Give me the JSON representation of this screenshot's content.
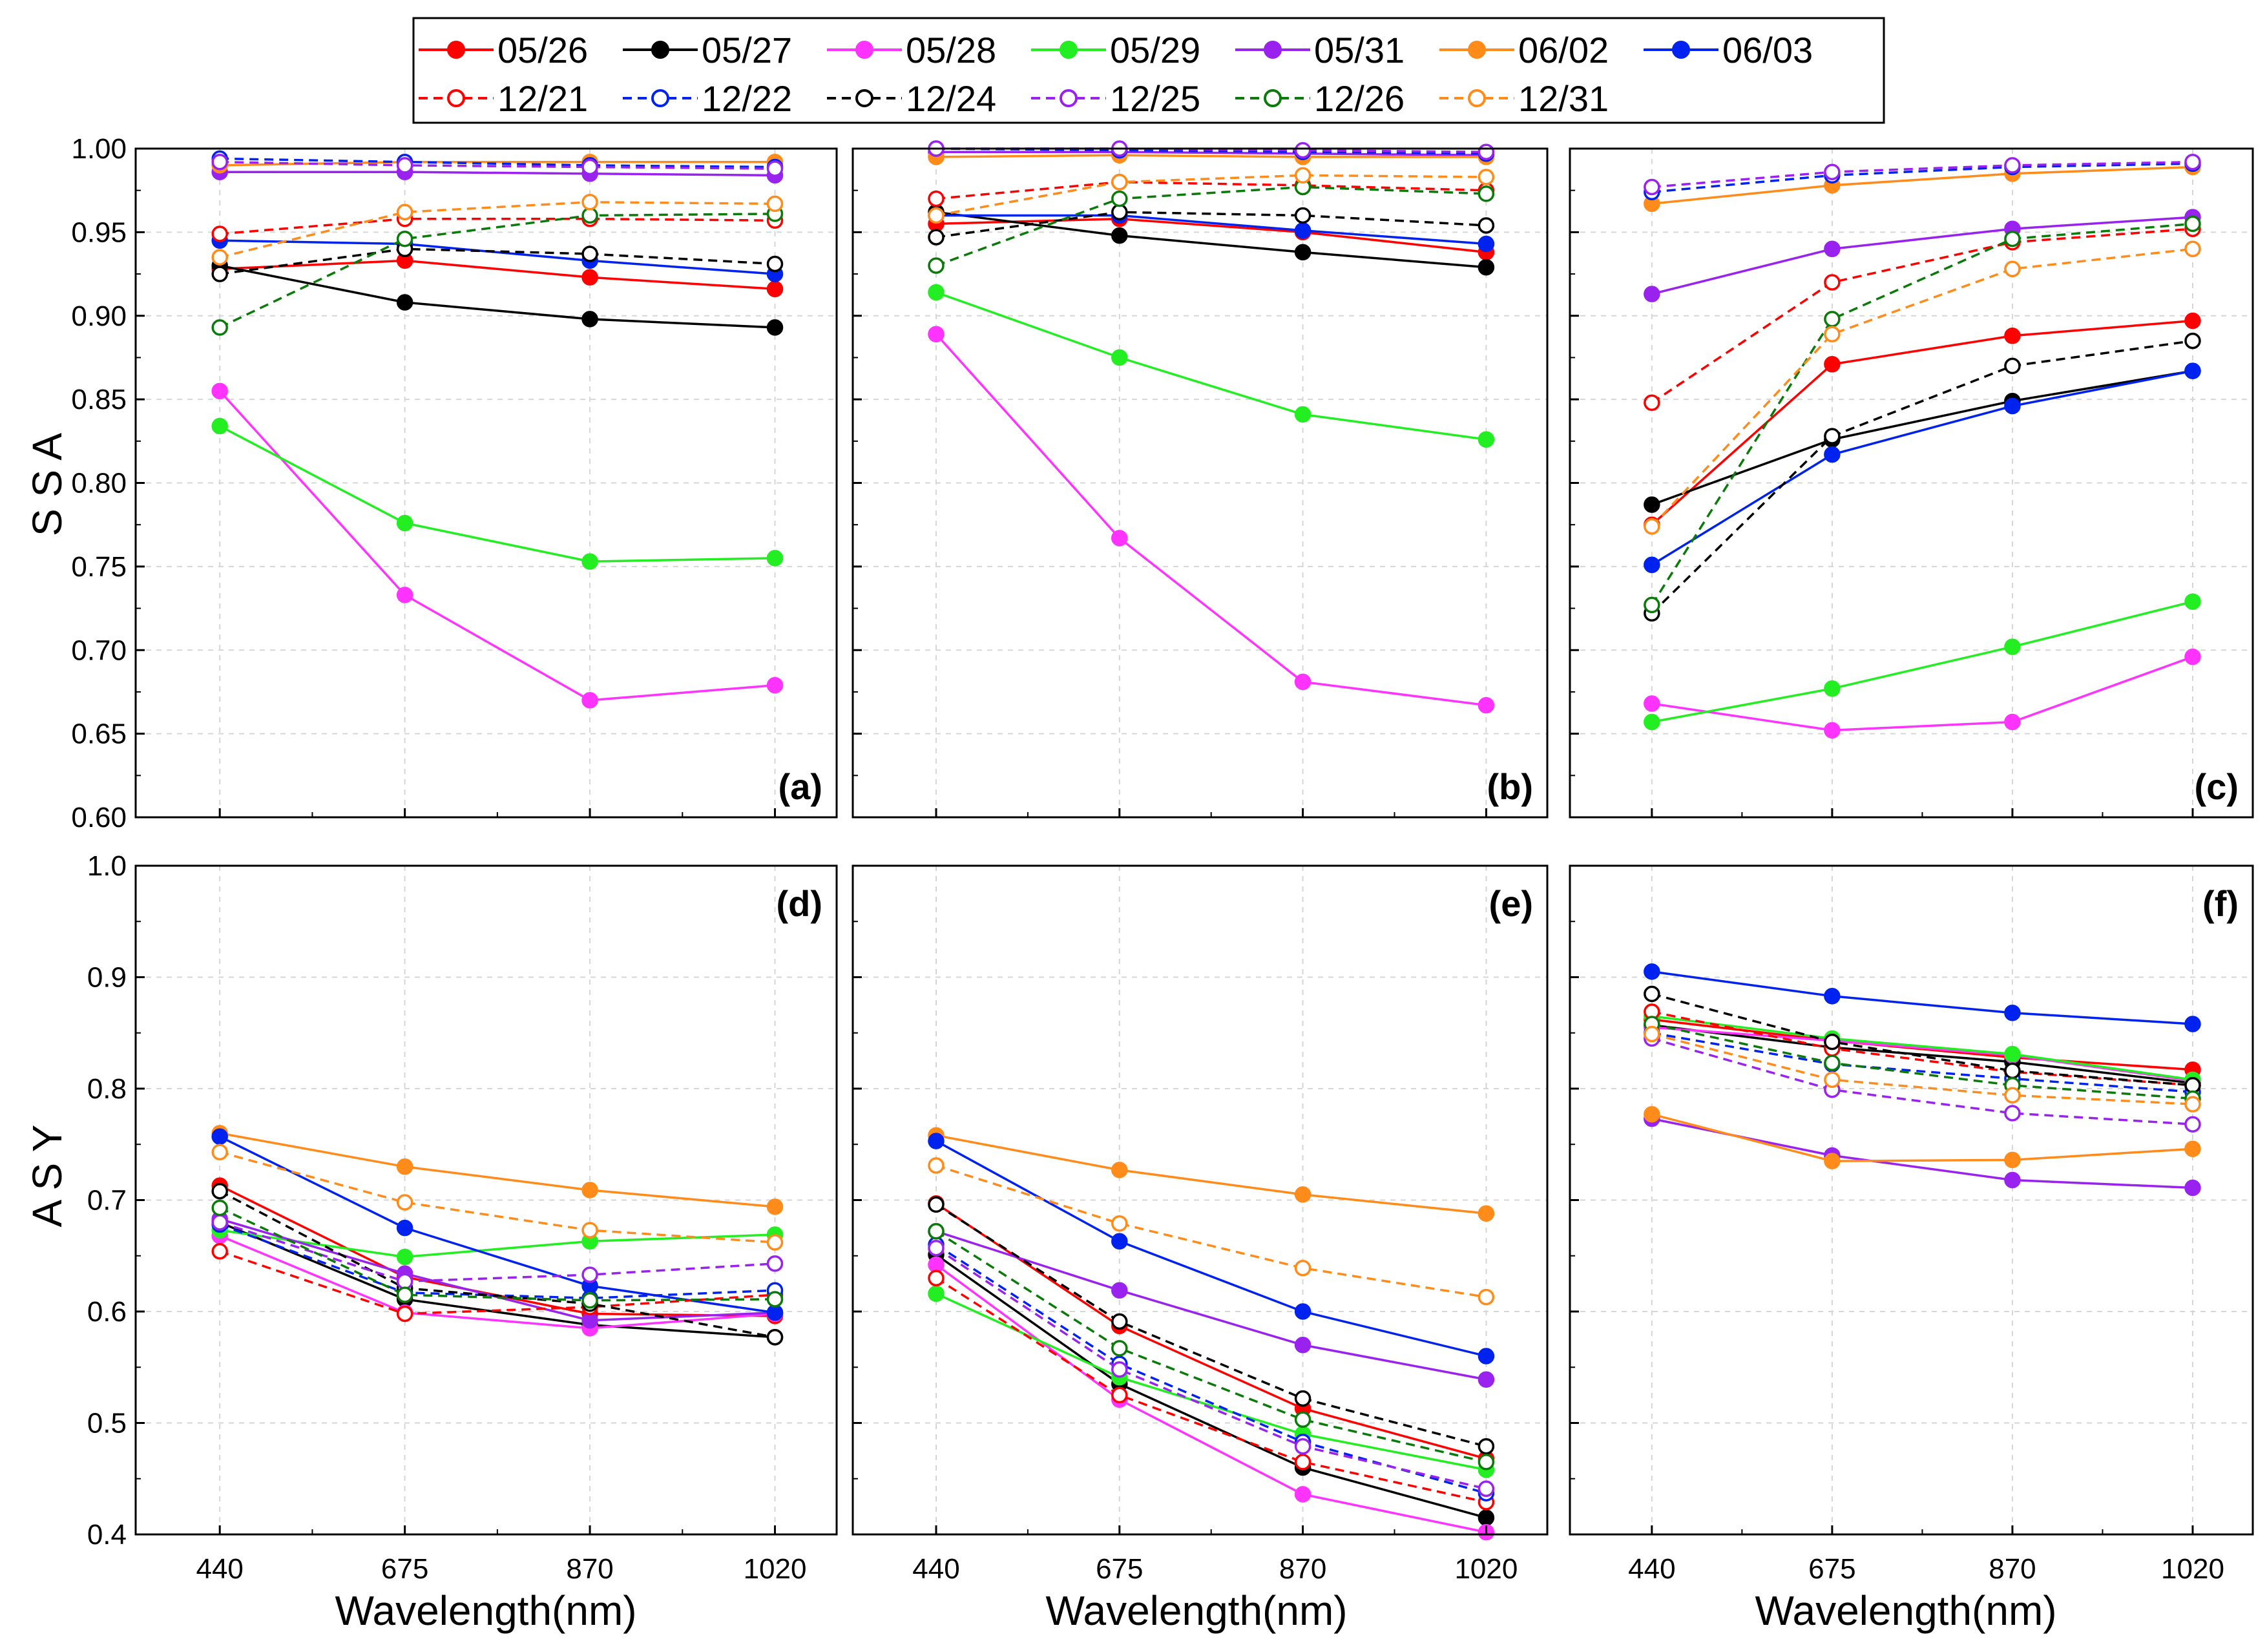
{
  "chart_data": {
    "type": "line",
    "x": [
      440,
      675,
      870,
      1020
    ],
    "xlabel": "Wavelength(nm)",
    "legend": {
      "placement": "top-center",
      "entries": [
        {
          "label": "05/26",
          "color": "#ff0000",
          "style": "solid",
          "marker": "filled"
        },
        {
          "label": "05/27",
          "color": "#000000",
          "style": "solid",
          "marker": "filled"
        },
        {
          "label": "05/28",
          "color": "#ff33ff",
          "style": "solid",
          "marker": "filled"
        },
        {
          "label": "05/29",
          "color": "#22ee22",
          "style": "solid",
          "marker": "filled"
        },
        {
          "label": "05/31",
          "color": "#9922ee",
          "style": "solid",
          "marker": "filled"
        },
        {
          "label": "06/02",
          "color": "#ff8c1a",
          "style": "solid",
          "marker": "filled"
        },
        {
          "label": "06/03",
          "color": "#0022ee",
          "style": "solid",
          "marker": "filled"
        },
        {
          "label": "12/21",
          "color": "#ff0000",
          "style": "dashed",
          "marker": "open"
        },
        {
          "label": "12/22",
          "color": "#0022ee",
          "style": "dashed",
          "marker": "open"
        },
        {
          "label": "12/24",
          "color": "#000000",
          "style": "dashed",
          "marker": "open"
        },
        {
          "label": "12/25",
          "color": "#9922ee",
          "style": "dashed",
          "marker": "open"
        },
        {
          "label": "12/26",
          "color": "#0a7a0a",
          "style": "dashed",
          "marker": "open"
        },
        {
          "label": "12/31",
          "color": "#ff8c1a",
          "style": "dashed",
          "marker": "open"
        }
      ]
    },
    "panels": [
      {
        "id": "a",
        "label": "(a)",
        "ylabel": "S S A",
        "ylim": [
          0.6,
          1.0
        ],
        "yticks": [
          "0.60",
          "0.65",
          "0.70",
          "0.75",
          "0.80",
          "0.85",
          "0.90",
          "0.95",
          "1.00"
        ],
        "show_xticks": false,
        "series": [
          {
            "name": "05/26",
            "values": [
              0.928,
              0.933,
              0.923,
              0.916
            ]
          },
          {
            "name": "05/27",
            "values": [
              0.93,
              0.908,
              0.898,
              0.893
            ]
          },
          {
            "name": "05/28",
            "values": [
              0.855,
              0.733,
              0.67,
              0.679
            ]
          },
          {
            "name": "05/29",
            "values": [
              0.834,
              0.776,
              0.753,
              0.755
            ]
          },
          {
            "name": "05/31",
            "values": [
              0.986,
              0.986,
              0.985,
              0.984
            ]
          },
          {
            "name": "06/02",
            "values": [
              0.99,
              0.992,
              0.992,
              0.992
            ]
          },
          {
            "name": "06/03",
            "values": [
              0.945,
              0.943,
              0.933,
              0.925
            ]
          },
          {
            "name": "12/21",
            "values": [
              0.949,
              0.958,
              0.958,
              0.957
            ]
          },
          {
            "name": "12/22",
            "values": [
              0.994,
              0.992,
              0.99,
              0.989
            ]
          },
          {
            "name": "12/24",
            "values": [
              0.925,
              0.94,
              0.937,
              0.931
            ]
          },
          {
            "name": "12/25",
            "values": [
              0.992,
              0.99,
              0.989,
              0.988
            ]
          },
          {
            "name": "12/26",
            "values": [
              0.893,
              0.946,
              0.96,
              0.961
            ]
          },
          {
            "name": "12/31",
            "values": [
              0.935,
              0.962,
              0.968,
              0.967
            ]
          }
        ]
      },
      {
        "id": "b",
        "label": "(b)",
        "ylabel": "",
        "ylim": [
          0.6,
          1.0
        ],
        "yticks": [],
        "show_xticks": false,
        "series": [
          {
            "name": "05/26",
            "values": [
              0.955,
              0.958,
              0.95,
              0.938
            ]
          },
          {
            "name": "05/27",
            "values": [
              0.962,
              0.948,
              0.938,
              0.929
            ]
          },
          {
            "name": "05/28",
            "values": [
              0.889,
              0.767,
              0.681,
              0.667
            ]
          },
          {
            "name": "05/29",
            "values": [
              0.914,
              0.875,
              0.841,
              0.826
            ]
          },
          {
            "name": "05/31",
            "values": [
              0.998,
              0.998,
              0.997,
              0.996
            ]
          },
          {
            "name": "06/02",
            "values": [
              0.995,
              0.996,
              0.995,
              0.995
            ]
          },
          {
            "name": "06/03",
            "values": [
              0.96,
              0.96,
              0.951,
              0.943
            ]
          },
          {
            "name": "12/21",
            "values": [
              0.97,
              0.98,
              0.978,
              0.975
            ]
          },
          {
            "name": "12/22",
            "values": [
              1.0,
              0.999,
              0.998,
              0.997
            ]
          },
          {
            "name": "12/24",
            "values": [
              0.947,
              0.962,
              0.96,
              0.954
            ]
          },
          {
            "name": "12/25",
            "values": [
              1.0,
              1.0,
              0.999,
              0.998
            ]
          },
          {
            "name": "12/26",
            "values": [
              0.93,
              0.97,
              0.977,
              0.973
            ]
          },
          {
            "name": "12/31",
            "values": [
              0.96,
              0.98,
              0.984,
              0.983
            ]
          }
        ]
      },
      {
        "id": "c",
        "label": "(c)",
        "ylabel": "",
        "ylim": [
          0.6,
          1.0
        ],
        "yticks": [],
        "show_xticks": false,
        "series": [
          {
            "name": "05/26",
            "values": [
              0.775,
              0.871,
              0.888,
              0.897
            ]
          },
          {
            "name": "05/27",
            "values": [
              0.787,
              0.826,
              0.849,
              0.867
            ]
          },
          {
            "name": "05/28",
            "values": [
              0.668,
              0.652,
              0.657,
              0.696
            ]
          },
          {
            "name": "05/29",
            "values": [
              0.657,
              0.677,
              0.702,
              0.729
            ]
          },
          {
            "name": "05/31",
            "values": [
              0.913,
              0.94,
              0.952,
              0.959
            ]
          },
          {
            "name": "06/02",
            "values": [
              0.967,
              0.978,
              0.985,
              0.989
            ]
          },
          {
            "name": "06/03",
            "values": [
              0.751,
              0.817,
              0.846,
              0.867
            ]
          },
          {
            "name": "12/21",
            "values": [
              0.848,
              0.92,
              0.944,
              0.952
            ]
          },
          {
            "name": "12/22",
            "values": [
              0.974,
              0.984,
              0.989,
              0.991
            ]
          },
          {
            "name": "12/24",
            "values": [
              0.722,
              0.828,
              0.87,
              0.885
            ]
          },
          {
            "name": "12/25",
            "values": [
              0.977,
              0.986,
              0.99,
              0.992
            ]
          },
          {
            "name": "12/26",
            "values": [
              0.727,
              0.898,
              0.946,
              0.955
            ]
          },
          {
            "name": "12/31",
            "values": [
              0.774,
              0.889,
              0.928,
              0.94
            ]
          }
        ]
      },
      {
        "id": "d",
        "label": "(d)",
        "ylabel": "A S Y",
        "ylim": [
          0.4,
          1.0
        ],
        "yticks": [
          "0.4",
          "0.5",
          "0.6",
          "0.7",
          "0.8",
          "0.9",
          "1.0"
        ],
        "show_xticks": true,
        "series": [
          {
            "name": "05/26",
            "values": [
              0.713,
              0.631,
              0.598,
              0.596
            ]
          },
          {
            "name": "05/27",
            "values": [
              0.68,
              0.611,
              0.588,
              0.577
            ]
          },
          {
            "name": "05/28",
            "values": [
              0.668,
              0.599,
              0.585,
              0.598
            ]
          },
          {
            "name": "05/29",
            "values": [
              0.673,
              0.649,
              0.663,
              0.669
            ]
          },
          {
            "name": "05/31",
            "values": [
              0.683,
              0.634,
              0.592,
              0.599
            ]
          },
          {
            "name": "06/02",
            "values": [
              0.76,
              0.73,
              0.709,
              0.694
            ]
          },
          {
            "name": "06/03",
            "values": [
              0.757,
              0.675,
              0.623,
              0.599
            ]
          },
          {
            "name": "12/21",
            "values": [
              0.654,
              0.598,
              0.604,
              0.615
            ]
          },
          {
            "name": "12/22",
            "values": [
              0.678,
              0.617,
              0.612,
              0.619
            ]
          },
          {
            "name": "12/24",
            "values": [
              0.708,
              0.621,
              0.607,
              0.577
            ]
          },
          {
            "name": "12/25",
            "values": [
              0.68,
              0.627,
              0.633,
              0.643
            ]
          },
          {
            "name": "12/26",
            "values": [
              0.693,
              0.615,
              0.61,
              0.611
            ]
          },
          {
            "name": "12/31",
            "values": [
              0.743,
              0.698,
              0.673,
              0.662
            ]
          }
        ]
      },
      {
        "id": "e",
        "label": "(e)",
        "ylabel": "",
        "ylim": [
          0.4,
          1.0
        ],
        "yticks": [],
        "show_xticks": true,
        "series": [
          {
            "name": "05/26",
            "values": [
              0.697,
              0.587,
              0.513,
              0.468
            ]
          },
          {
            "name": "05/27",
            "values": [
              0.651,
              0.535,
              0.46,
              0.415
            ]
          },
          {
            "name": "05/28",
            "values": [
              0.642,
              0.521,
              0.436,
              0.402
            ]
          },
          {
            "name": "05/29",
            "values": [
              0.616,
              0.541,
              0.49,
              0.458
            ]
          },
          {
            "name": "05/31",
            "values": [
              0.672,
              0.619,
              0.57,
              0.539
            ]
          },
          {
            "name": "06/02",
            "values": [
              0.758,
              0.727,
              0.705,
              0.688
            ]
          },
          {
            "name": "06/03",
            "values": [
              0.753,
              0.663,
              0.6,
              0.56
            ]
          },
          {
            "name": "12/21",
            "values": [
              0.63,
              0.525,
              0.465,
              0.429
            ]
          },
          {
            "name": "12/22",
            "values": [
              0.66,
              0.553,
              0.483,
              0.437
            ]
          },
          {
            "name": "12/24",
            "values": [
              0.696,
              0.591,
              0.522,
              0.479
            ]
          },
          {
            "name": "12/25",
            "values": [
              0.657,
              0.548,
              0.479,
              0.441
            ]
          },
          {
            "name": "12/26",
            "values": [
              0.672,
              0.567,
              0.503,
              0.465
            ]
          },
          {
            "name": "12/31",
            "values": [
              0.731,
              0.679,
              0.639,
              0.613
            ]
          }
        ]
      },
      {
        "id": "f",
        "label": "(f)",
        "ylabel": "",
        "ylim": [
          0.4,
          1.0
        ],
        "yticks": [],
        "show_xticks": true,
        "series": [
          {
            "name": "05/26",
            "values": [
              0.862,
              0.843,
              0.828,
              0.817
            ]
          },
          {
            "name": "05/27",
            "values": [
              0.857,
              0.837,
              0.824,
              0.805
            ]
          },
          {
            "name": "05/28",
            "values": [
              0.855,
              0.843,
              0.83,
              0.807
            ]
          },
          {
            "name": "05/29",
            "values": [
              0.865,
              0.845,
              0.831,
              0.808
            ]
          },
          {
            "name": "05/31",
            "values": [
              0.773,
              0.74,
              0.718,
              0.711
            ]
          },
          {
            "name": "06/02",
            "values": [
              0.777,
              0.735,
              0.736,
              0.746
            ]
          },
          {
            "name": "06/03",
            "values": [
              0.905,
              0.883,
              0.868,
              0.858
            ]
          },
          {
            "name": "12/21",
            "values": [
              0.869,
              0.836,
              0.815,
              0.803
            ]
          },
          {
            "name": "12/22",
            "values": [
              0.85,
              0.822,
              0.809,
              0.797
            ]
          },
          {
            "name": "12/24",
            "values": [
              0.885,
              0.842,
              0.816,
              0.803
            ]
          },
          {
            "name": "12/25",
            "values": [
              0.845,
              0.799,
              0.778,
              0.768
            ]
          },
          {
            "name": "12/26",
            "values": [
              0.858,
              0.823,
              0.803,
              0.791
            ]
          },
          {
            "name": "12/31",
            "values": [
              0.849,
              0.808,
              0.794,
              0.786
            ]
          }
        ]
      }
    ]
  }
}
